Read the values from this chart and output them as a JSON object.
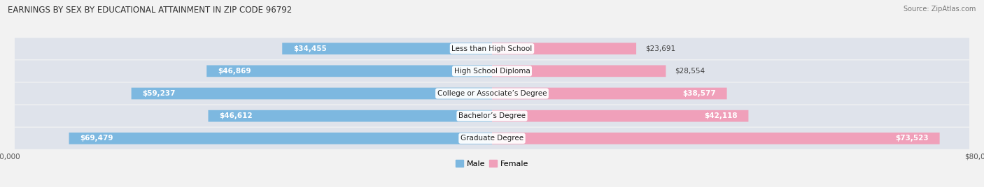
{
  "title": "EARNINGS BY SEX BY EDUCATIONAL ATTAINMENT IN ZIP CODE 96792",
  "source": "Source: ZipAtlas.com",
  "categories": [
    "Less than High School",
    "High School Diploma",
    "College or Associate’s Degree",
    "Bachelor’s Degree",
    "Graduate Degree"
  ],
  "male_values": [
    34455,
    46869,
    59237,
    46612,
    69479
  ],
  "female_values": [
    23691,
    28554,
    38577,
    42118,
    73523
  ],
  "max_value": 80000,
  "male_color": "#7db8e0",
  "female_color": "#f0a0ba",
  "bg_color": "#f2f2f2",
  "row_colors": [
    "#e8eaee",
    "#dfe2e8"
  ],
  "title_fontsize": 8.5,
  "source_fontsize": 7,
  "bar_height": 0.52,
  "label_fontsize": 7.5,
  "cat_fontsize": 7.5
}
